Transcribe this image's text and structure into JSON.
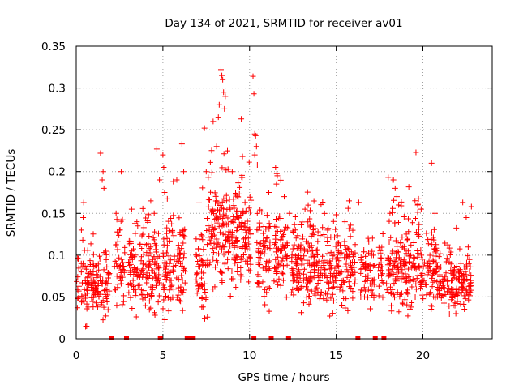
{
  "chart_data": {
    "type": "scatter",
    "title": "Day 134 of 2021, SRMTID for receiver av01",
    "xlabel": "GPS time / hours",
    "ylabel": "SRMTID / TECUs",
    "xlim": [
      0,
      24
    ],
    "ylim": [
      0,
      0.35
    ],
    "grid": true,
    "marker": "+",
    "color": "#ff0000",
    "x_ticks": [
      0,
      5,
      10,
      15,
      20
    ],
    "x_tick_labels": [
      "0",
      "5",
      "10",
      "15",
      "20"
    ],
    "y_ticks": [
      0,
      0.05,
      0.1,
      0.15,
      0.2,
      0.25,
      0.3,
      0.35
    ],
    "y_tick_labels": [
      "0",
      "0.05",
      "0.1",
      "0.15",
      "0.2",
      "0.25",
      "0.3",
      "0.35"
    ],
    "zero_marks_x": [
      2.05,
      2.9,
      4.85,
      6.4,
      6.6,
      6.75,
      10.25,
      11.25,
      12.25,
      16.25,
      17.25,
      17.75
    ],
    "bands": [
      {
        "x0": 0.0,
        "x1": 2.0,
        "mid": 0.065,
        "spread": 0.035,
        "density": 12
      },
      {
        "x0": 2.2,
        "x1": 2.8,
        "mid": 0.085,
        "spread": 0.04,
        "density": 12
      },
      {
        "x0": 3.0,
        "x1": 4.8,
        "mid": 0.08,
        "spread": 0.045,
        "density": 14
      },
      {
        "x0": 5.0,
        "x1": 6.3,
        "mid": 0.085,
        "spread": 0.045,
        "density": 14
      },
      {
        "x0": 6.9,
        "x1": 7.6,
        "mid": 0.075,
        "spread": 0.045,
        "density": 14
      },
      {
        "x0": 7.6,
        "x1": 10.1,
        "mid": 0.12,
        "spread": 0.06,
        "density": 16
      },
      {
        "x0": 10.4,
        "x1": 11.2,
        "mid": 0.1,
        "spread": 0.05,
        "density": 14
      },
      {
        "x0": 11.4,
        "x1": 12.2,
        "mid": 0.105,
        "spread": 0.05,
        "density": 14
      },
      {
        "x0": 12.4,
        "x1": 16.1,
        "mid": 0.085,
        "spread": 0.045,
        "density": 14
      },
      {
        "x0": 16.4,
        "x1": 17.2,
        "mid": 0.075,
        "spread": 0.035,
        "density": 12
      },
      {
        "x0": 17.4,
        "x1": 17.7,
        "mid": 0.08,
        "spread": 0.035,
        "density": 12
      },
      {
        "x0": 17.9,
        "x1": 20.8,
        "mid": 0.085,
        "spread": 0.045,
        "density": 14
      },
      {
        "x0": 20.8,
        "x1": 22.8,
        "mid": 0.065,
        "spread": 0.03,
        "density": 13
      }
    ],
    "peaks": [
      {
        "x": 0.4,
        "y": 0.145
      },
      {
        "x": 0.3,
        "y": 0.13
      },
      {
        "x": 0.6,
        "y": 0.015
      },
      {
        "x": 1.4,
        "y": 0.222
      },
      {
        "x": 1.5,
        "y": 0.19
      },
      {
        "x": 1.55,
        "y": 0.2
      },
      {
        "x": 1.6,
        "y": 0.18
      },
      {
        "x": 2.3,
        "y": 0.15
      },
      {
        "x": 2.6,
        "y": 0.2
      },
      {
        "x": 2.5,
        "y": 0.13
      },
      {
        "x": 3.2,
        "y": 0.155
      },
      {
        "x": 3.5,
        "y": 0.14
      },
      {
        "x": 3.9,
        "y": 0.133
      },
      {
        "x": 4.3,
        "y": 0.165
      },
      {
        "x": 4.5,
        "y": 0.15
      },
      {
        "x": 4.65,
        "y": 0.227
      },
      {
        "x": 4.8,
        "y": 0.19
      },
      {
        "x": 5.0,
        "y": 0.22
      },
      {
        "x": 5.05,
        "y": 0.205
      },
      {
        "x": 5.1,
        "y": 0.175
      },
      {
        "x": 5.6,
        "y": 0.188
      },
      {
        "x": 5.8,
        "y": 0.19
      },
      {
        "x": 6.1,
        "y": 0.233
      },
      {
        "x": 6.2,
        "y": 0.2
      },
      {
        "x": 7.4,
        "y": 0.252
      },
      {
        "x": 7.5,
        "y": 0.2
      },
      {
        "x": 7.9,
        "y": 0.26
      },
      {
        "x": 8.1,
        "y": 0.23
      },
      {
        "x": 8.2,
        "y": 0.265
      },
      {
        "x": 8.25,
        "y": 0.28
      },
      {
        "x": 8.35,
        "y": 0.322
      },
      {
        "x": 8.4,
        "y": 0.315
      },
      {
        "x": 8.45,
        "y": 0.31
      },
      {
        "x": 8.5,
        "y": 0.295
      },
      {
        "x": 8.55,
        "y": 0.275
      },
      {
        "x": 8.6,
        "y": 0.29
      },
      {
        "x": 9.0,
        "y": 0.2
      },
      {
        "x": 9.3,
        "y": 0.17
      },
      {
        "x": 10.2,
        "y": 0.314
      },
      {
        "x": 10.25,
        "y": 0.293
      },
      {
        "x": 10.3,
        "y": 0.245
      },
      {
        "x": 10.35,
        "y": 0.243
      },
      {
        "x": 10.4,
        "y": 0.23
      },
      {
        "x": 10.3,
        "y": 0.22
      },
      {
        "x": 10.45,
        "y": 0.208
      },
      {
        "x": 11.5,
        "y": 0.205
      },
      {
        "x": 11.6,
        "y": 0.195
      },
      {
        "x": 11.55,
        "y": 0.185
      },
      {
        "x": 12.0,
        "y": 0.17
      },
      {
        "x": 12.3,
        "y": 0.15
      },
      {
        "x": 13.2,
        "y": 0.155
      },
      {
        "x": 14.5,
        "y": 0.13
      },
      {
        "x": 15.5,
        "y": 0.14
      },
      {
        "x": 16.3,
        "y": 0.163
      },
      {
        "x": 18.0,
        "y": 0.193
      },
      {
        "x": 18.3,
        "y": 0.19
      },
      {
        "x": 18.4,
        "y": 0.18
      },
      {
        "x": 18.5,
        "y": 0.17
      },
      {
        "x": 18.6,
        "y": 0.16
      },
      {
        "x": 18.1,
        "y": 0.15
      },
      {
        "x": 19.6,
        "y": 0.223
      },
      {
        "x": 19.7,
        "y": 0.16
      },
      {
        "x": 19.9,
        "y": 0.155
      },
      {
        "x": 20.5,
        "y": 0.21
      },
      {
        "x": 20.7,
        "y": 0.15
      },
      {
        "x": 22.3,
        "y": 0.163
      },
      {
        "x": 22.8,
        "y": 0.158
      },
      {
        "x": 22.5,
        "y": 0.145
      }
    ]
  }
}
